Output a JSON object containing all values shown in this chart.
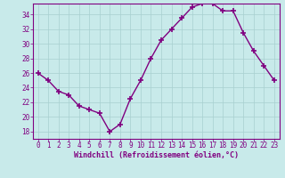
{
  "x": [
    0,
    1,
    2,
    3,
    4,
    5,
    6,
    7,
    8,
    9,
    10,
    11,
    12,
    13,
    14,
    15,
    16,
    17,
    18,
    19,
    20,
    21,
    22,
    23
  ],
  "y": [
    26,
    25,
    23.5,
    23,
    21.5,
    21,
    20.5,
    18,
    19,
    22.5,
    25,
    28,
    30.5,
    32,
    33.5,
    35,
    35.5,
    35.5,
    34.5,
    34.5,
    31.5,
    29,
    27,
    25
  ],
  "line_color": "#800080",
  "marker": "+",
  "marker_size": 4,
  "marker_lw": 1.2,
  "bg_color": "#c8eaea",
  "grid_color": "#a8d0d0",
  "xlabel": "Windchill (Refroidissement éolien,°C)",
  "xlabel_color": "#800080",
  "tick_color": "#800080",
  "spine_color": "#800080",
  "xlim": [
    -0.5,
    23.5
  ],
  "ylim": [
    17,
    35.5
  ],
  "yticks": [
    18,
    20,
    22,
    24,
    26,
    28,
    30,
    32,
    34
  ],
  "xticks": [
    0,
    1,
    2,
    3,
    4,
    5,
    6,
    7,
    8,
    9,
    10,
    11,
    12,
    13,
    14,
    15,
    16,
    17,
    18,
    19,
    20,
    21,
    22,
    23
  ],
  "font_family": "monospace",
  "tick_fontsize": 5.5,
  "xlabel_fontsize": 6.0,
  "linewidth": 1.0
}
